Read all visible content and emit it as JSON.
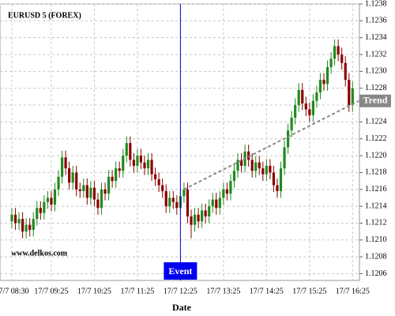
{
  "chart_data": {
    "type": "candlestick",
    "title": "EURUSD 5 (FOREX)",
    "watermark": "www.delkos.com",
    "x_label": "Date",
    "categories": [
      "17/7 08:30",
      null,
      null,
      null,
      null,
      null,
      null,
      null,
      null,
      null,
      null,
      "17/7 09:25",
      null,
      null,
      null,
      null,
      null,
      null,
      null,
      null,
      null,
      null,
      null,
      "17/7 10:25",
      null,
      null,
      null,
      null,
      null,
      null,
      null,
      null,
      null,
      null,
      null,
      "17/7 11:25",
      null,
      null,
      null,
      null,
      null,
      null,
      null,
      null,
      null,
      null,
      null,
      "17/7 12:25",
      null,
      null,
      null,
      null,
      null,
      null,
      null,
      null,
      null,
      null,
      null,
      "17/7 13:25",
      null,
      null,
      null,
      null,
      null,
      null,
      null,
      null,
      null,
      null,
      null,
      "17/7 14:25",
      null,
      null,
      null,
      null,
      null,
      null,
      null,
      null,
      null,
      null,
      null,
      "17/7 15:25",
      null,
      null,
      null,
      null,
      null,
      null,
      null,
      null,
      null,
      null,
      null,
      "17/7 16:25"
    ],
    "open": [
      1.12122,
      1.1213,
      1.1212,
      1.12125,
      1.1211,
      1.12118,
      1.12112,
      1.12125,
      1.12138,
      1.12132,
      1.12145,
      1.1215,
      1.12142,
      1.1216,
      1.12175,
      1.12198,
      1.12185,
      1.12168,
      1.1218,
      1.1216,
      1.12158,
      1.12165,
      1.1215,
      1.12162,
      1.12148,
      1.12138,
      1.1216,
      1.12155,
      1.12175,
      1.1217,
      1.12185,
      1.12182,
      1.122,
      1.12215,
      1.12195,
      1.12188,
      1.122,
      1.12192,
      1.12185,
      1.12195,
      1.12178,
      1.12172,
      1.12165,
      1.12158,
      1.1214,
      1.1215,
      1.12145,
      1.12138,
      1.12152,
      1.1216,
      1.12128,
      1.12118,
      1.1213,
      1.12122,
      1.12135,
      1.12128,
      1.1214,
      1.12148,
      1.12138,
      1.1215,
      1.1216,
      1.12155,
      1.1217,
      1.12182,
      1.12195,
      1.12188,
      1.12205,
      1.12195,
      1.12182,
      1.12192,
      1.12185,
      1.12178,
      1.12188,
      1.1218,
      1.12165,
      1.12158,
      1.12185,
      1.1221,
      1.1223,
      1.12245,
      1.1226,
      1.12278,
      1.12262,
      1.12255,
      1.12248,
      1.12265,
      1.12275,
      1.1229,
      1.12285,
      1.12305,
      1.12315,
      1.1233,
      1.1232,
      1.1231,
      1.1229,
      1.1226
    ],
    "high": [
      1.12138,
      1.12138,
      1.12133,
      1.12133,
      1.12126,
      1.12126,
      1.12133,
      1.12146,
      1.12146,
      1.12153,
      1.12158,
      1.12158,
      1.12168,
      1.12183,
      1.12206,
      1.12206,
      1.12193,
      1.12188,
      1.12188,
      1.12168,
      1.12173,
      1.12173,
      1.1217,
      1.1217,
      1.12156,
      1.12168,
      1.12168,
      1.12183,
      1.12183,
      1.12193,
      1.12193,
      1.12208,
      1.12223,
      1.12223,
      1.12203,
      1.12208,
      1.12208,
      1.122,
      1.12203,
      1.12203,
      1.12186,
      1.1218,
      1.12173,
      1.12166,
      1.12158,
      1.12158,
      1.12153,
      1.1216,
      1.12168,
      1.12168,
      1.12136,
      1.12138,
      1.12138,
      1.12143,
      1.12143,
      1.12148,
      1.12156,
      1.12156,
      1.12158,
      1.12168,
      1.12168,
      1.12178,
      1.1219,
      1.12203,
      1.12203,
      1.12213,
      1.12213,
      1.12203,
      1.122,
      1.122,
      1.12193,
      1.12196,
      1.12196,
      1.12188,
      1.12173,
      1.12193,
      1.12218,
      1.12238,
      1.12253,
      1.12268,
      1.12286,
      1.12286,
      1.1227,
      1.12263,
      1.12273,
      1.12283,
      1.12298,
      1.12298,
      1.12313,
      1.12323,
      1.12338,
      1.12338,
      1.12328,
      1.12318,
      1.12298,
      1.12288
    ],
    "low": [
      1.12114,
      1.12112,
      1.12112,
      1.12102,
      1.12102,
      1.12104,
      1.12104,
      1.12117,
      1.12124,
      1.12124,
      1.12137,
      1.12134,
      1.12134,
      1.12152,
      1.12167,
      1.12177,
      1.1216,
      1.1216,
      1.12152,
      1.1215,
      1.1215,
      1.12142,
      1.12142,
      1.1214,
      1.1213,
      1.1213,
      1.12147,
      1.12147,
      1.12162,
      1.12162,
      1.12174,
      1.12174,
      1.12192,
      1.12187,
      1.1218,
      1.1218,
      1.12184,
      1.12177,
      1.12177,
      1.1217,
      1.12164,
      1.12157,
      1.1215,
      1.12132,
      1.12132,
      1.12137,
      1.1213,
      1.1213,
      1.12144,
      1.1212,
      1.12102,
      1.1211,
      1.12114,
      1.12114,
      1.1212,
      1.1212,
      1.12132,
      1.1213,
      1.1213,
      1.12142,
      1.12147,
      1.12147,
      1.12162,
      1.12174,
      1.1218,
      1.1218,
      1.12187,
      1.12174,
      1.12174,
      1.12177,
      1.1217,
      1.1217,
      1.12172,
      1.12157,
      1.1215,
      1.1215,
      1.12177,
      1.12202,
      1.12222,
      1.12237,
      1.12252,
      1.12254,
      1.12247,
      1.1224,
      1.1224,
      1.12257,
      1.12267,
      1.12277,
      1.12277,
      1.12297,
      1.12307,
      1.12312,
      1.12302,
      1.12282,
      1.12252,
      1.12252
    ],
    "close": [
      1.1213,
      1.1212,
      1.12125,
      1.1211,
      1.12118,
      1.12112,
      1.12125,
      1.12138,
      1.12132,
      1.12145,
      1.1215,
      1.12142,
      1.1216,
      1.12175,
      1.12198,
      1.12185,
      1.12168,
      1.1218,
      1.1216,
      1.12158,
      1.12165,
      1.1215,
      1.12162,
      1.12148,
      1.12138,
      1.1216,
      1.12155,
      1.12175,
      1.1217,
      1.12185,
      1.12182,
      1.122,
      1.12215,
      1.12195,
      1.12188,
      1.122,
      1.12192,
      1.12185,
      1.12195,
      1.12178,
      1.12172,
      1.12165,
      1.12158,
      1.1214,
      1.1215,
      1.12145,
      1.12138,
      1.12152,
      1.1216,
      1.12128,
      1.12118,
      1.1213,
      1.12122,
      1.12135,
      1.12128,
      1.1214,
      1.12148,
      1.12138,
      1.1215,
      1.1216,
      1.12155,
      1.1217,
      1.12182,
      1.12195,
      1.12188,
      1.12205,
      1.12195,
      1.12182,
      1.12192,
      1.12185,
      1.12178,
      1.12188,
      1.1218,
      1.12165,
      1.12158,
      1.12185,
      1.1221,
      1.1223,
      1.12245,
      1.1226,
      1.12278,
      1.12262,
      1.12255,
      1.12248,
      1.12265,
      1.12275,
      1.1229,
      1.12285,
      1.12305,
      1.12315,
      1.1233,
      1.1232,
      1.1231,
      1.1229,
      1.1226,
      1.1228
    ],
    "up_color": "#1f8a1f",
    "down_color": "#8b0000",
    "ylim": [
      1.12052,
      1.1238
    ],
    "yticks": [
      1.1206,
      1.1208,
      {
        "value": 1.121,
        "label": "1.1210"
      },
      1.1212,
      1.1214,
      1.1216,
      1.1218,
      {
        "value": 1.122,
        "label": "1.1220"
      },
      1.1222,
      1.1224,
      1.1226,
      1.1228,
      {
        "value": 1.123,
        "label": "1.1230"
      },
      1.1232,
      1.1234,
      1.1236,
      1.1238
    ],
    "grid": true,
    "event": {
      "label": "Event",
      "x": 47,
      "color": "#0000ee"
    },
    "trend": {
      "label": "Trend",
      "start": {
        "x": 48,
        "value": 1.1216
      },
      "end": {
        "x": 95,
        "value": 1.12265
      },
      "color": "#888888"
    }
  }
}
